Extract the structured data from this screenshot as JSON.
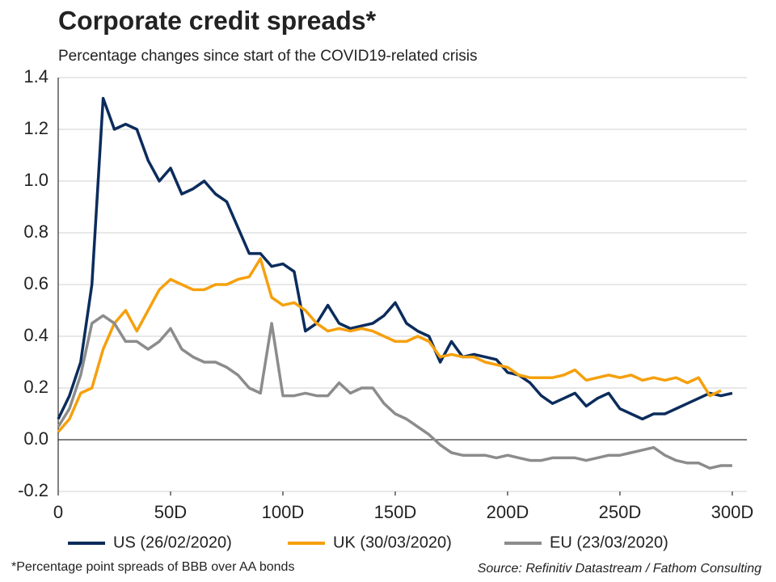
{
  "chart_data": {
    "type": "line",
    "title": "Corporate credit spreads*",
    "subtitle": "Percentage changes since start of the COVID19-related crisis",
    "footnote": "*Percentage point spreads of BBB over AA bonds",
    "source": "Source: Refinitiv Datastream / Fathom Consulting",
    "x": [
      0,
      5,
      10,
      15,
      20,
      25,
      30,
      35,
      40,
      45,
      50,
      55,
      60,
      65,
      70,
      75,
      80,
      85,
      90,
      95,
      100,
      105,
      110,
      115,
      120,
      125,
      130,
      135,
      140,
      145,
      150,
      155,
      160,
      165,
      170,
      175,
      180,
      185,
      190,
      195,
      200,
      205,
      210,
      215,
      220,
      225,
      230,
      235,
      240,
      245,
      250,
      255,
      260,
      265,
      270,
      275,
      280,
      285,
      290,
      295,
      300
    ],
    "series": [
      {
        "name": "US (26/02/2020)",
        "color": "#0b2c5c",
        "values": [
          0.08,
          0.17,
          0.3,
          0.6,
          1.32,
          1.2,
          1.22,
          1.2,
          1.08,
          1.0,
          1.05,
          0.95,
          0.97,
          1.0,
          0.95,
          0.92,
          0.82,
          0.72,
          0.72,
          0.67,
          0.68,
          0.65,
          0.42,
          0.45,
          0.52,
          0.45,
          0.43,
          0.44,
          0.45,
          0.48,
          0.53,
          0.45,
          0.42,
          0.4,
          0.3,
          0.38,
          0.32,
          0.33,
          0.32,
          0.31,
          0.26,
          0.25,
          0.22,
          0.17,
          0.14,
          0.16,
          0.18,
          0.13,
          0.16,
          0.18,
          0.12,
          0.1,
          0.08,
          0.1,
          0.1,
          0.12,
          0.14,
          0.16,
          0.18,
          0.17,
          0.18
        ]
      },
      {
        "name": "UK (30/03/2020)",
        "color": "#f5a00d",
        "values": [
          0.03,
          0.08,
          0.18,
          0.2,
          0.35,
          0.45,
          0.5,
          0.42,
          0.5,
          0.58,
          0.62,
          0.6,
          0.58,
          0.58,
          0.6,
          0.6,
          0.62,
          0.63,
          0.7,
          0.55,
          0.52,
          0.53,
          0.5,
          0.45,
          0.42,
          0.43,
          0.42,
          0.43,
          0.42,
          0.4,
          0.38,
          0.38,
          0.4,
          0.38,
          0.32,
          0.33,
          0.32,
          0.32,
          0.3,
          0.29,
          0.28,
          0.25,
          0.24,
          0.24,
          0.24,
          0.25,
          0.27,
          0.23,
          0.24,
          0.25,
          0.24,
          0.25,
          0.23,
          0.24,
          0.23,
          0.24,
          0.22,
          0.24,
          0.17,
          0.19,
          null
        ]
      },
      {
        "name": "EU (23/03/2020)",
        "color": "#8c8c8c",
        "values": [
          0.05,
          0.12,
          0.25,
          0.45,
          0.48,
          0.45,
          0.38,
          0.38,
          0.35,
          0.38,
          0.43,
          0.35,
          0.32,
          0.3,
          0.3,
          0.28,
          0.25,
          0.2,
          0.18,
          0.45,
          0.17,
          0.17,
          0.18,
          0.17,
          0.17,
          0.22,
          0.18,
          0.2,
          0.2,
          0.14,
          0.1,
          0.08,
          0.05,
          0.02,
          -0.02,
          -0.05,
          -0.06,
          -0.06,
          -0.06,
          -0.07,
          -0.06,
          -0.07,
          -0.08,
          -0.08,
          -0.07,
          -0.07,
          -0.07,
          -0.08,
          -0.07,
          -0.06,
          -0.06,
          -0.05,
          -0.04,
          -0.03,
          -0.06,
          -0.08,
          -0.09,
          -0.09,
          -0.11,
          -0.1,
          -0.1
        ]
      }
    ],
    "xlim": [
      0,
      306.5
    ],
    "xticks": [
      0,
      {
        "value": 50,
        "label": "50D"
      },
      {
        "value": 100,
        "label": "100D"
      },
      {
        "value": 150,
        "label": "150D"
      },
      {
        "value": 200,
        "label": "200D"
      },
      {
        "value": 250,
        "label": "250D"
      },
      {
        "value": 300,
        "label": "300D"
      }
    ],
    "ylim": [
      -0.2,
      1.4
    ],
    "yticks": [
      -0.2,
      {
        "value": 0,
        "label": "0.0"
      },
      0.2,
      0.4,
      0.6,
      0.8,
      {
        "value": 1,
        "label": "1.0"
      },
      1.2,
      1.4
    ],
    "grid": true,
    "legend": "bottom"
  }
}
